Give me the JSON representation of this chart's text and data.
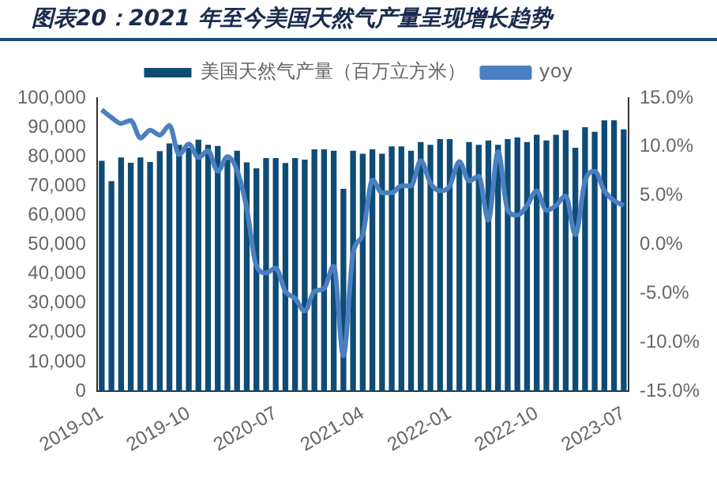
{
  "chart_data": {
    "type": "bar",
    "title": "图表20：2021 年至今美国天然气产量呈现增长趋势",
    "categories": [
      "2019-01",
      null,
      null,
      null,
      null,
      null,
      null,
      null,
      null,
      "2019-10",
      null,
      null,
      null,
      null,
      null,
      null,
      null,
      null,
      "2020-07",
      null,
      null,
      null,
      null,
      null,
      null,
      null,
      null,
      "2021-04",
      null,
      null,
      null,
      null,
      null,
      null,
      null,
      null,
      "2022-01",
      null,
      null,
      null,
      null,
      null,
      null,
      null,
      null,
      "2022-10",
      null,
      null,
      null,
      null,
      null,
      null,
      null,
      null,
      "2023-07"
    ],
    "series": [
      {
        "name": "美国天然气产量（百万立方米）",
        "color": "#0f4c75",
        "values": [
          78600,
          71600,
          79700,
          77900,
          79700,
          78200,
          81900,
          84500,
          84000,
          83000,
          85800,
          84000,
          83600,
          79000,
          82000,
          78000,
          76000,
          79500,
          79500,
          77800,
          79500,
          79000,
          82500,
          82500,
          82000,
          69000,
          82000,
          81000,
          82500,
          81000,
          83500,
          83500,
          82000,
          85000,
          84000,
          86000,
          86000,
          78000,
          85000,
          84000,
          85500,
          84000,
          86000,
          86500,
          85000,
          87500,
          85500,
          87500,
          89000,
          83000,
          90000,
          88500,
          92400,
          92400,
          89300
        ]
      },
      {
        "name": "yoy",
        "type": "line",
        "axis": "y2",
        "color": "#4a7fc1",
        "values": [
          13.8,
          13.0,
          12.4,
          12.7,
          10.9,
          11.7,
          11.2,
          12.2,
          9.2,
          10.3,
          8.9,
          9.6,
          7.5,
          9.0,
          7.6,
          3.7,
          -2.2,
          -2.9,
          -2.4,
          -4.8,
          -5.5,
          -6.8,
          -4.8,
          -4.5,
          -2.2,
          -11.4,
          -0.9,
          1.0,
          6.6,
          5.3,
          5.3,
          6.0,
          6.0,
          8.6,
          6.3,
          5.5,
          6.0,
          8.5,
          6.5,
          7.0,
          2.5,
          9.5,
          3.5,
          3.0,
          4.0,
          5.5,
          3.5,
          4.0,
          5.0,
          1.0,
          6.5,
          7.5,
          5.5,
          4.5,
          4.0
        ]
      }
    ],
    "ylim": [
      0,
      100000
    ],
    "yticks": [
      {
        "value": 0,
        "label": "0"
      },
      {
        "value": 10000,
        "label": "10,000"
      },
      {
        "value": 20000,
        "label": "20,000"
      },
      {
        "value": 30000,
        "label": "30,000"
      },
      {
        "value": 40000,
        "label": "40,000"
      },
      {
        "value": 50000,
        "label": "50,000"
      },
      {
        "value": 60000,
        "label": "60,000"
      },
      {
        "value": 70000,
        "label": "70,000"
      },
      {
        "value": 80000,
        "label": "80,000"
      },
      {
        "value": 90000,
        "label": "90,000"
      },
      {
        "value": 100000,
        "label": "100,000"
      }
    ],
    "y2lim": [
      -15,
      15
    ],
    "y2ticks": [
      {
        "value": -15,
        "label": "-15.0%"
      },
      {
        "value": -10,
        "label": "-10.0%"
      },
      {
        "value": -5,
        "label": "-5.0%"
      },
      {
        "value": 0,
        "label": "0.0%"
      },
      {
        "value": 5,
        "label": "5.0%"
      },
      {
        "value": 10,
        "label": "10.0%"
      },
      {
        "value": 15,
        "label": "15.0%"
      }
    ],
    "grid": false,
    "legend": "top",
    "marker": "none",
    "line_style": "solid"
  }
}
